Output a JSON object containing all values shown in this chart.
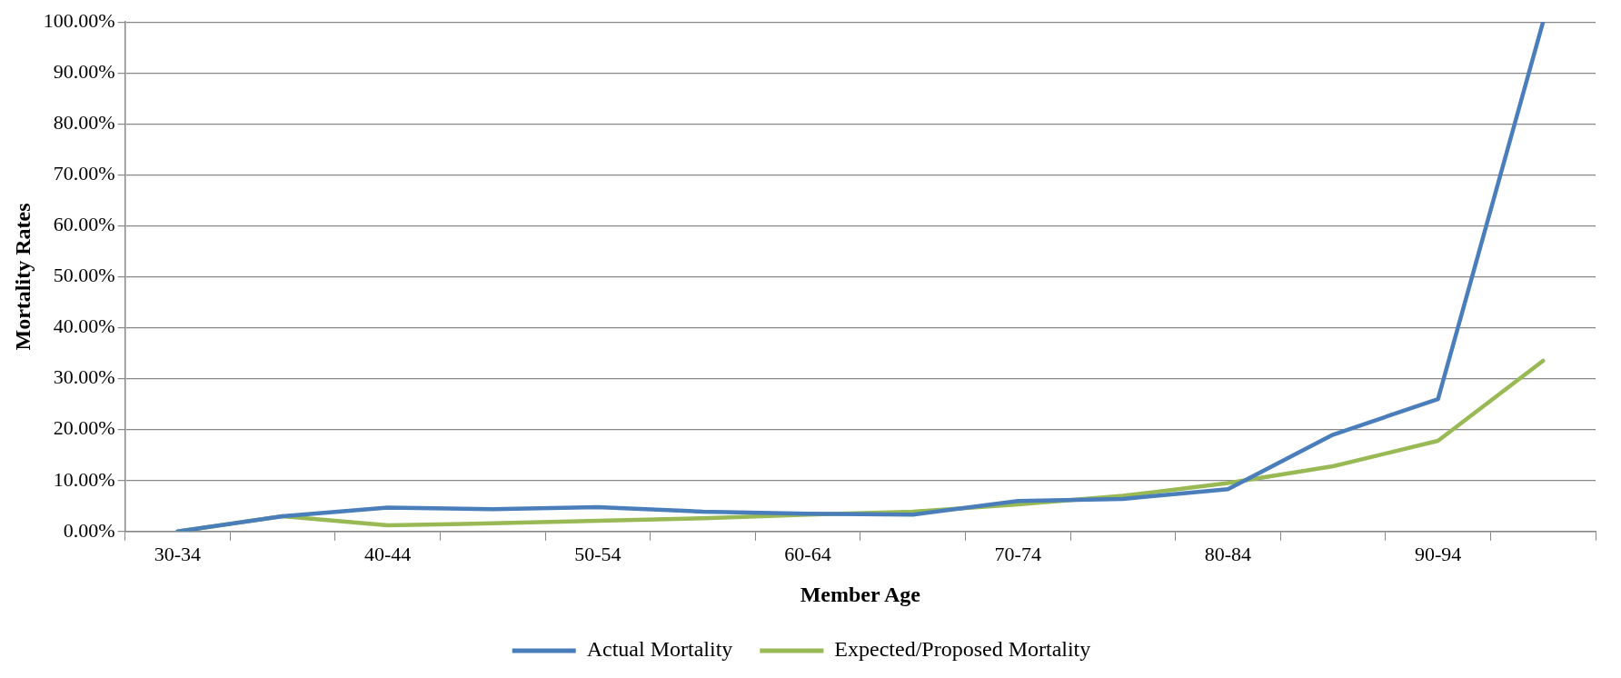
{
  "chart_data": {
    "type": "line",
    "xlabel": "Member Age",
    "ylabel": "Mortality Rates",
    "categories": [
      "30-34",
      null,
      "40-44",
      null,
      "50-54",
      null,
      "60-64",
      null,
      "70-74",
      null,
      "80-84",
      null,
      "90-94",
      null
    ],
    "series": [
      {
        "name": "Actual Mortality",
        "color": "#4a7ebb",
        "values": [
          0,
          3,
          4.7,
          4.4,
          4.8,
          3.9,
          3.5,
          3.3,
          6.0,
          6.4,
          8.3,
          19,
          26,
          100
        ]
      },
      {
        "name": "Expected/Proposed Mortality",
        "color": "#98b954",
        "values": [
          0,
          3,
          1.2,
          1.6,
          2.1,
          2.6,
          3.3,
          3.9,
          5.3,
          7.0,
          9.5,
          12.8,
          17.8,
          33.5
        ]
      }
    ],
    "ylim": [
      0,
      100
    ],
    "yticks": [
      {
        "value": 0,
        "label": "0.00%"
      },
      {
        "value": 10,
        "label": "10.00%"
      },
      {
        "value": 20,
        "label": "20.00%"
      },
      {
        "value": 30,
        "label": "30.00%"
      },
      {
        "value": 40,
        "label": "40.00%"
      },
      {
        "value": 50,
        "label": "50.00%"
      },
      {
        "value": 60,
        "label": "60.00%"
      },
      {
        "value": 70,
        "label": "70.00%"
      },
      {
        "value": 80,
        "label": "80.00%"
      },
      {
        "value": 90,
        "label": "90.00%"
      },
      {
        "value": 100,
        "label": "100.00%"
      }
    ],
    "grid": "y",
    "legend": "bottom",
    "marker": "none",
    "line_style": "solid"
  }
}
